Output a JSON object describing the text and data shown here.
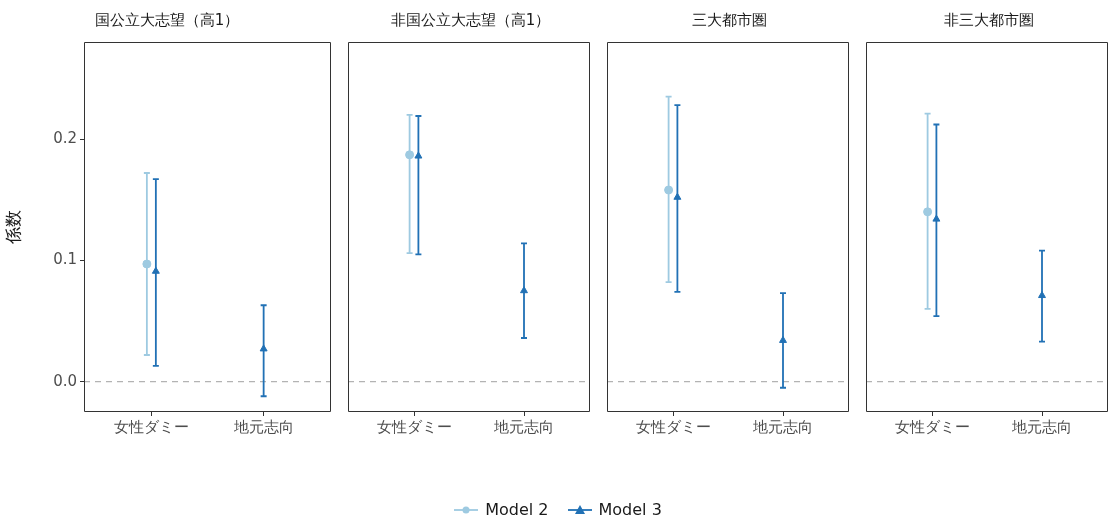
{
  "chart_data": [
    {
      "type": "scatter",
      "title": "国公立大志望（高1）",
      "ylabel": "係数",
      "categories": [
        "女性ダミー",
        "地元志向"
      ],
      "ylim": [
        -0.025,
        0.28
      ],
      "yticks": [
        {
          "value": 0,
          "label": "0.0"
        },
        {
          "value": 0.1,
          "label": "0.1"
        },
        {
          "value": 0.2,
          "label": "0.2"
        }
      ],
      "grid": false,
      "legend": "bottom",
      "series": [
        {
          "name": "Model 2",
          "color": "#9ecae1",
          "marker": "circle",
          "values": [
            0.097,
            null
          ],
          "errors": [
            [
              0.022,
              0.172
            ],
            null
          ]
        },
        {
          "name": "Model 3",
          "color": "#2171b5",
          "marker": "triangle",
          "values": [
            0.091,
            0.027
          ],
          "errors": [
            [
              0.013,
              0.167
            ],
            [
              -0.012,
              0.063
            ]
          ]
        }
      ],
      "ref_lines": [
        {
          "axis": "y",
          "value": 0,
          "color": "#b3b3b3",
          "line_style": "dashed"
        }
      ]
    },
    {
      "type": "scatter",
      "title": "非国公立大志望（高1）",
      "categories": [
        "女性ダミー",
        "地元志向"
      ],
      "ylim": [
        -0.025,
        0.28
      ],
      "grid": false,
      "tick_labels": "x",
      "series": [
        {
          "color": "#9ecae1",
          "marker": "circle",
          "values": [
            0.187,
            null
          ],
          "errors": [
            [
              0.106,
              0.22
            ],
            null
          ]
        },
        {
          "color": "#2171b5",
          "marker": "triangle",
          "values": [
            0.186,
            0.075
          ],
          "errors": [
            [
              0.105,
              0.219
            ],
            [
              0.036,
              0.114
            ]
          ]
        }
      ],
      "ref_lines": [
        {
          "axis": "y",
          "value": 0,
          "color": "#b3b3b3",
          "line_style": "dashed"
        }
      ]
    },
    {
      "type": "scatter",
      "title": "三大都市圏",
      "categories": [
        "女性ダミー",
        "地元志向"
      ],
      "ylim": [
        -0.025,
        0.28
      ],
      "grid": false,
      "tick_labels": "x",
      "series": [
        {
          "color": "#9ecae1",
          "marker": "circle",
          "values": [
            0.158,
            null
          ],
          "errors": [
            [
              0.082,
              0.235
            ],
            null
          ]
        },
        {
          "color": "#2171b5",
          "marker": "triangle",
          "values": [
            0.152,
            0.034
          ],
          "errors": [
            [
              0.074,
              0.228
            ],
            [
              -0.005,
              0.073
            ]
          ]
        }
      ],
      "ref_lines": [
        {
          "axis": "y",
          "value": 0,
          "color": "#b3b3b3",
          "line_style": "dashed"
        }
      ]
    },
    {
      "type": "scatter",
      "title": "非三大都市圏",
      "categories": [
        "女性ダミー",
        "地元志向"
      ],
      "ylim": [
        -0.025,
        0.28
      ],
      "grid": false,
      "tick_labels": "x",
      "series": [
        {
          "color": "#9ecae1",
          "marker": "circle",
          "values": [
            0.14,
            null
          ],
          "errors": [
            [
              0.06,
              0.221
            ],
            null
          ]
        },
        {
          "color": "#2171b5",
          "marker": "triangle",
          "values": [
            0.134,
            0.071
          ],
          "errors": [
            [
              0.054,
              0.212
            ],
            [
              0.033,
              0.108
            ]
          ]
        }
      ],
      "ref_lines": [
        {
          "axis": "y",
          "value": 0,
          "color": "#b3b3b3",
          "line_style": "dashed"
        }
      ]
    }
  ]
}
